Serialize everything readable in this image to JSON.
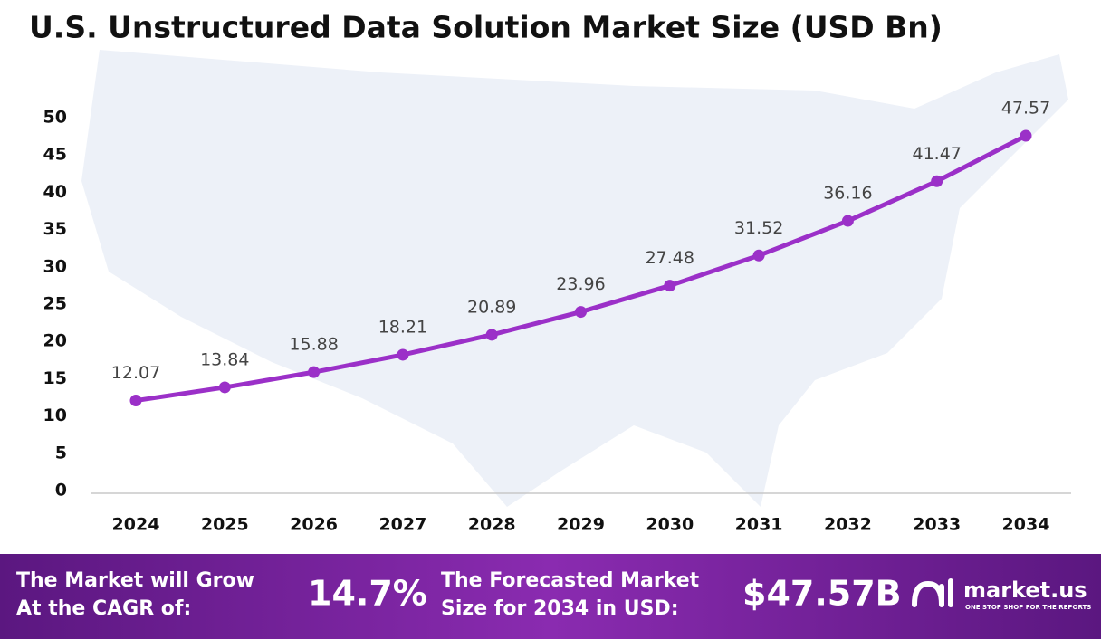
{
  "chart_data": {
    "type": "line",
    "title": "U.S. Unstructured Data Solution Market Size (USD Bn)",
    "categories": [
      "2024",
      "2025",
      "2026",
      "2027",
      "2028",
      "2029",
      "2030",
      "2031",
      "2032",
      "2033",
      "2034"
    ],
    "values": [
      12.07,
      13.84,
      15.88,
      18.21,
      20.89,
      23.96,
      27.48,
      31.52,
      36.16,
      41.47,
      47.57
    ],
    "color": "#9b30c8",
    "ylim": [
      0,
      50
    ],
    "yticks": [
      0,
      5,
      10,
      15,
      20,
      25,
      30,
      35,
      40,
      45,
      50
    ]
  },
  "footer": {
    "cagr_text": [
      "The Market will Grow",
      "At the CAGR of:"
    ],
    "cagr_value": "14.7%",
    "forecast_text": [
      "The Forecasted Market",
      "Size for 2034 in USD:"
    ],
    "forecast_value": "$47.57B",
    "brand": "market.us",
    "tagline": "ONE STOP SHOP FOR THE REPORTS"
  }
}
